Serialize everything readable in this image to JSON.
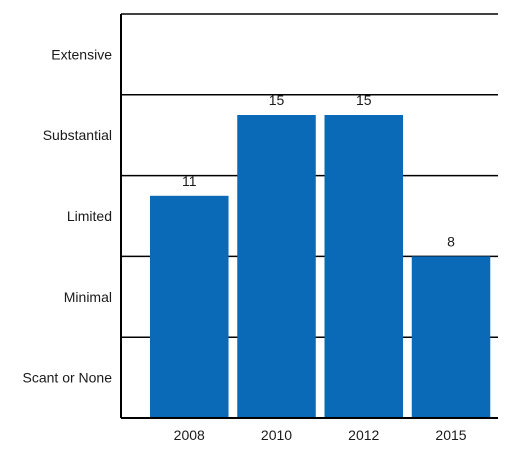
{
  "chart_data": {
    "type": "bar",
    "categories": [
      "2008",
      "2010",
      "2012",
      "2015"
    ],
    "values": [
      11,
      15,
      15,
      8
    ],
    "data_labels": [
      "11",
      "15",
      "15",
      "8"
    ],
    "ylim": [
      0,
      20
    ],
    "y_bands": [
      "Extensive",
      "Substantial",
      "Limited",
      "Minimal",
      "Scant or None"
    ],
    "bar_color": "#0b6ab7",
    "grid": true,
    "legend": "none"
  }
}
